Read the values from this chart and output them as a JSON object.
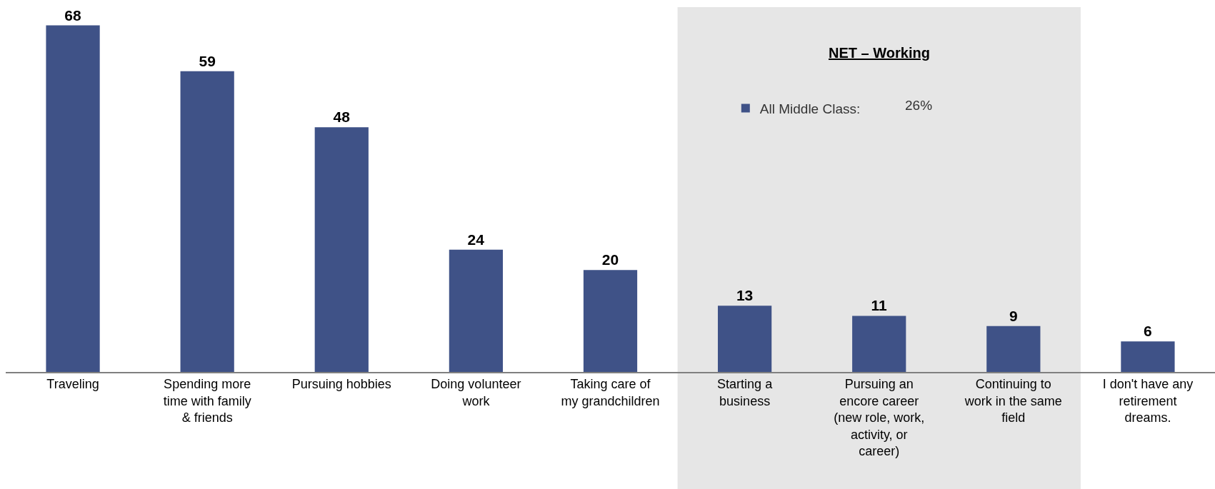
{
  "chart_data": {
    "type": "bar",
    "categories": [
      "Traveling",
      "Spending more time with family & friends",
      "Pursuing hobbies",
      "Doing volunteer work",
      "Taking care of my grandchildren",
      "Starting a business",
      "Pursuing an encore career (new role, work, activity, or career)",
      "Continuing to work in the same field",
      "I don't have any retirement dreams."
    ],
    "series": [
      {
        "name": "All Middle Class:",
        "color": "#3f5287",
        "values": [
          68,
          59,
          48,
          24,
          20,
          13,
          11,
          9,
          6
        ]
      }
    ],
    "data_labels": true,
    "tick_labels": "x",
    "grid": false,
    "legend": "top right",
    "bands": [
      {
        "axis": "x",
        "from": "Starting a business",
        "to": "Continuing to work in the same field",
        "label": "NET – Working",
        "color": "#e6e6e6"
      }
    ],
    "annotations": [
      "26%"
    ]
  }
}
